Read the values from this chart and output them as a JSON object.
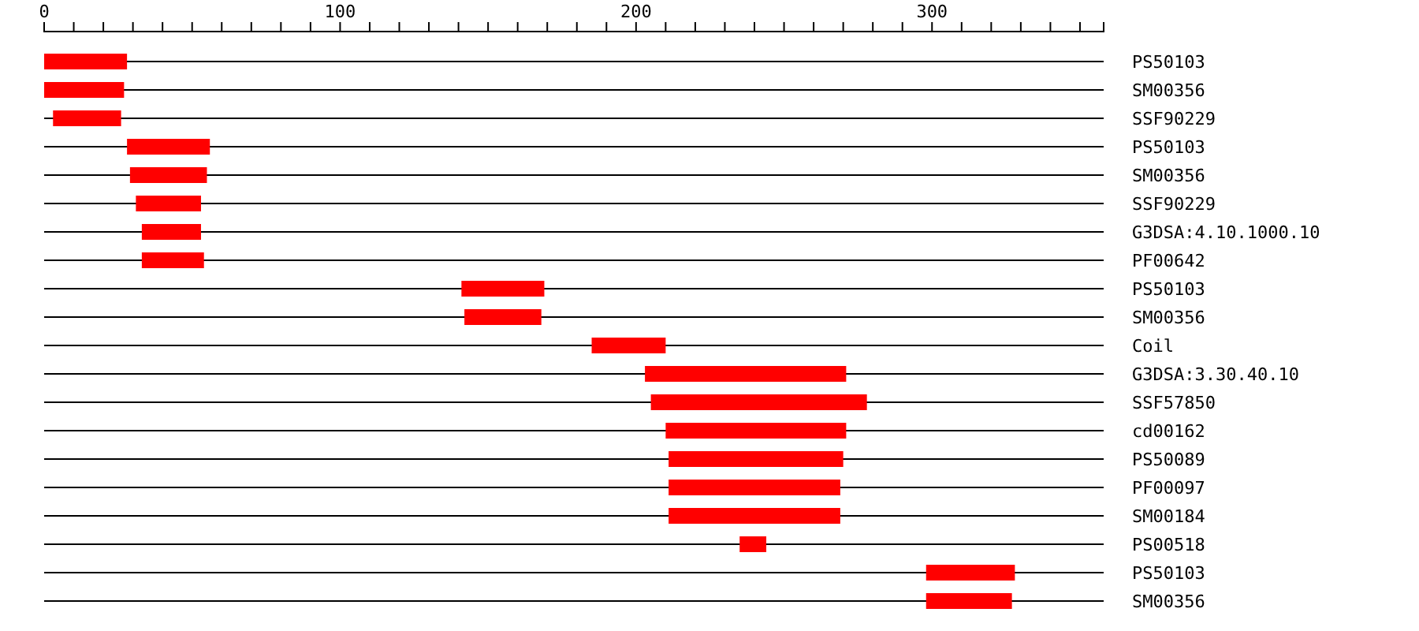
{
  "chart_data": {
    "type": "bar",
    "orientation": "horizontal",
    "grid": "y",
    "categories": [
      "PS50103",
      "SM00356",
      "SSF90229",
      "PS50103",
      "SM00356",
      "SSF90229",
      "G3DSA:4.10.1000.10",
      "PF00642",
      "PS50103",
      "SM00356",
      "Coil",
      "G3DSA:3.30.40.10",
      "SSF57850",
      "cd00162",
      "PS50089",
      "PF00097",
      "SM00184",
      "PS00518",
      "PS50103",
      "SM00356"
    ],
    "base": [
      0,
      0,
      3,
      28,
      29,
      31,
      33,
      33,
      141,
      142,
      185,
      203,
      205,
      210,
      211,
      211,
      211,
      235,
      298,
      298
    ],
    "values": [
      28,
      27,
      23,
      28,
      26,
      22,
      20,
      21,
      28,
      26,
      25,
      68,
      73,
      61,
      59,
      58,
      58,
      9,
      30,
      29
    ],
    "color": "#ff0000",
    "xlim": [
      0,
      358
    ],
    "xticks": [
      0,
      {
        "value": 10,
        "label": null
      },
      {
        "value": 20,
        "label": null
      },
      {
        "value": 30,
        "label": null
      },
      {
        "value": 40,
        "label": null
      },
      {
        "value": 50,
        "label": null
      },
      {
        "value": 60,
        "label": null
      },
      {
        "value": 70,
        "label": null
      },
      {
        "value": 80,
        "label": null
      },
      {
        "value": 90,
        "label": null
      },
      100,
      {
        "value": 110,
        "label": null
      },
      {
        "value": 120,
        "label": null
      },
      {
        "value": 130,
        "label": null
      },
      {
        "value": 140,
        "label": null
      },
      {
        "value": 150,
        "label": null
      },
      {
        "value": 160,
        "label": null
      },
      {
        "value": 170,
        "label": null
      },
      {
        "value": 180,
        "label": null
      },
      {
        "value": 190,
        "label": null
      },
      200,
      {
        "value": 210,
        "label": null
      },
      {
        "value": 220,
        "label": null
      },
      {
        "value": 230,
        "label": null
      },
      {
        "value": 240,
        "label": null
      },
      {
        "value": 250,
        "label": null
      },
      {
        "value": 260,
        "label": null
      },
      {
        "value": 270,
        "label": null
      },
      {
        "value": 280,
        "label": null
      },
      {
        "value": 290,
        "label": null
      },
      300,
      {
        "value": 310,
        "label": null
      },
      {
        "value": 320,
        "label": null
      },
      {
        "value": 330,
        "label": null
      },
      {
        "value": 340,
        "label": null
      },
      {
        "value": 350,
        "label": null
      }
    ]
  }
}
